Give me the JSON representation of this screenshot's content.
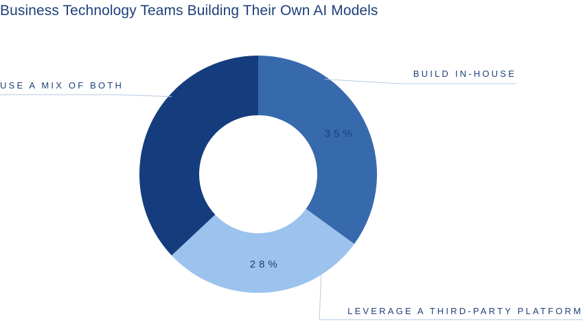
{
  "chart_data": {
    "type": "pie",
    "title": "Business Technology Teams Building Their Own AI Models",
    "categories": [
      "BUILD IN-HOUSE",
      "LEVERAGE A THIRD-PARTY PLATFORM",
      "USE A MIX OF BOTH"
    ],
    "values": [
      35,
      28,
      37
    ],
    "value_labels": [
      "35%",
      "28%",
      "37%"
    ],
    "colors": [
      "#376aad",
      "#9bc3ee",
      "#153d7e"
    ],
    "donut": true,
    "legend": "none"
  }
}
